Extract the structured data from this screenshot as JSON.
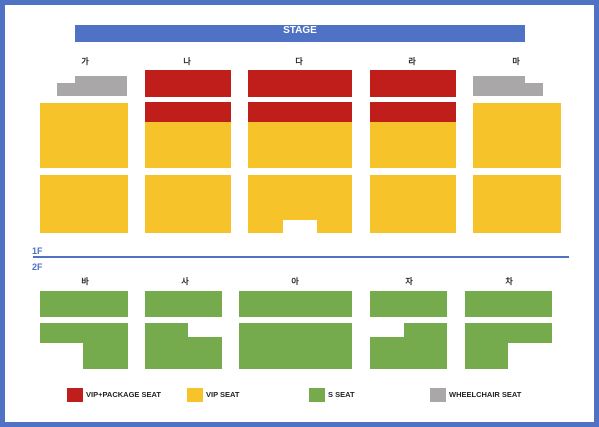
{
  "stage": "STAGE",
  "floors": {
    "first": "1F",
    "second": "2F"
  },
  "blocks_1f": [
    "가",
    "나",
    "다",
    "라",
    "마"
  ],
  "blocks_2f": [
    "바",
    "사",
    "아",
    "자",
    "차"
  ],
  "legend": [
    {
      "label": "VIP+PACKAGE SEAT",
      "color": "#bf1e1a"
    },
    {
      "label": "VIP SEAT",
      "color": "#f6c32a"
    },
    {
      "label": "S SEAT",
      "color": "#76ab4d"
    },
    {
      "label": "WHEELCHAIR SEAT",
      "color": "#a9a7a7"
    }
  ],
  "colors": {
    "border": "#4f72c4",
    "vip_package": "#bf1e1a",
    "vip": "#f6c32a",
    "s": "#76ab4d",
    "wheelchair": "#a9a7a7"
  }
}
